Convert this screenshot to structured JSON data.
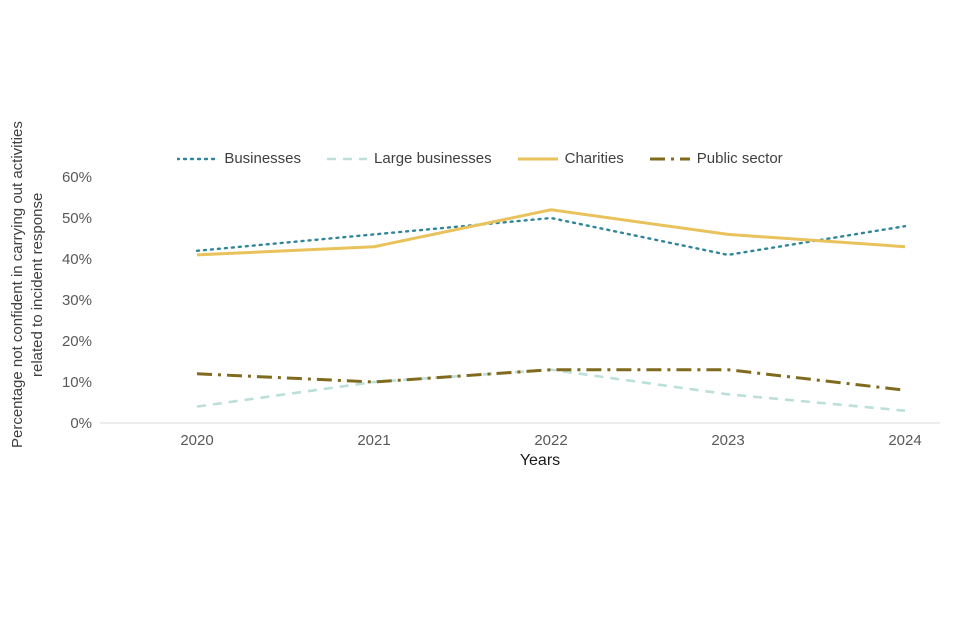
{
  "chart_data": {
    "type": "line",
    "title": "",
    "xlabel": "Years",
    "ylabel": "Percentage not confident in carrying out activities related to incident response",
    "x": [
      2020,
      2021,
      2022,
      2023,
      2024
    ],
    "ylim": [
      0,
      60
    ],
    "yticks": [
      0,
      10,
      20,
      30,
      40,
      50,
      60
    ],
    "ytick_suffix": "%",
    "grid": "off",
    "legend_position": "top",
    "series": [
      {
        "name": "Businesses",
        "style": "dotted",
        "color": "#31859B",
        "width": 2.4,
        "values": [
          42,
          46,
          50,
          41,
          48
        ]
      },
      {
        "name": "Large businesses",
        "style": "dashed",
        "color": "#BCDFDA",
        "width": 2.6,
        "values": [
          4,
          10,
          13,
          7,
          3
        ]
      },
      {
        "name": "Charities",
        "style": "solid",
        "color": "#E9C25B",
        "width": 3.0,
        "values": [
          41,
          43,
          52,
          46,
          43
        ]
      },
      {
        "name": "Public sector",
        "style": "dashdot",
        "color": "#7F6A1E",
        "width": 3.0,
        "values": [
          12,
          10,
          13,
          13,
          8
        ]
      }
    ],
    "axis_color": "#d9d9d9",
    "tick_label_color": "#595959"
  }
}
